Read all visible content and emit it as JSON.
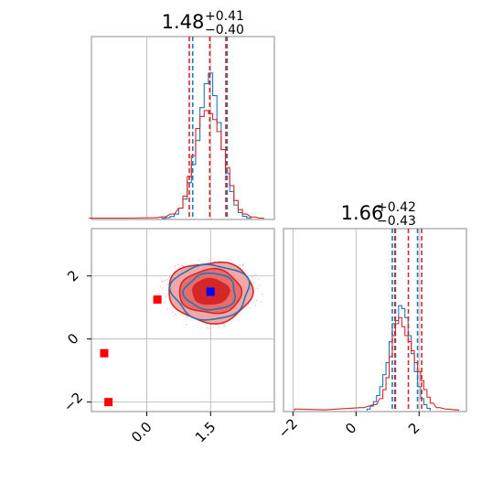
{
  "chart_data": {
    "type": "corner",
    "colors": {
      "series_a": "#1f77b4",
      "series_b": "#d62728",
      "truth": "#0000ff",
      "points": "#ff0000"
    },
    "panels": [
      {
        "id": "hist-x",
        "type": "histogram",
        "title": {
          "value": "1.48",
          "plus": "+0.41",
          "minus": "−0.40"
        },
        "xlim": [
          -1.3,
          3.0
        ],
        "grid": true,
        "series": [
          {
            "color": "#1f77b4",
            "bins": [
              [
                0.4,
                0.002
              ],
              [
                0.5,
                0.006
              ],
              [
                0.6,
                0.014
              ],
              [
                0.7,
                0.03
              ],
              [
                0.8,
                0.07
              ],
              [
                0.9,
                0.13
              ],
              [
                1.0,
                0.24
              ],
              [
                1.1,
                0.36
              ],
              [
                1.2,
                0.52
              ],
              [
                1.3,
                0.74
              ],
              [
                1.4,
                0.9
              ],
              [
                1.5,
                0.97
              ],
              [
                1.6,
                0.82
              ],
              [
                1.7,
                0.64
              ],
              [
                1.8,
                0.46
              ],
              [
                1.9,
                0.3
              ],
              [
                2.0,
                0.18
              ],
              [
                2.1,
                0.09
              ],
              [
                2.2,
                0.04
              ],
              [
                2.3,
                0.015
              ],
              [
                2.4,
                0.004
              ]
            ],
            "quantiles": [
              1.08,
              1.48,
              1.89
            ]
          },
          {
            "color": "#d62728",
            "bins": [
              [
                -1.3,
                0.003
              ],
              [
                -0.5,
                0.003
              ],
              [
                0.2,
                0.006
              ],
              [
                0.4,
                0.012
              ],
              [
                0.6,
                0.03
              ],
              [
                0.8,
                0.07
              ],
              [
                0.9,
                0.15
              ],
              [
                1.0,
                0.28
              ],
              [
                1.1,
                0.42
              ],
              [
                1.2,
                0.6
              ],
              [
                1.3,
                0.68
              ],
              [
                1.4,
                0.72
              ],
              [
                1.5,
                0.7
              ],
              [
                1.6,
                0.66
              ],
              [
                1.7,
                0.58
              ],
              [
                1.8,
                0.46
              ],
              [
                1.9,
                0.34
              ],
              [
                2.0,
                0.22
              ],
              [
                2.1,
                0.12
              ],
              [
                2.2,
                0.06
              ],
              [
                2.3,
                0.03
              ],
              [
                2.5,
                0.01
              ],
              [
                2.7,
                0.003
              ]
            ],
            "quantiles": [
              1.0,
              1.48,
              1.86
            ]
          }
        ]
      },
      {
        "id": "scatter-xy",
        "type": "contour",
        "xlim": [
          -1.3,
          3.0
        ],
        "ylim": [
          -2.3,
          3.5
        ],
        "x_ticks": [
          "0.0",
          "1.5"
        ],
        "x_tick_values": [
          0.0,
          1.5
        ],
        "y_ticks": [
          "−2",
          "0",
          "2"
        ],
        "y_tick_values": [
          -2,
          0,
          2
        ],
        "grid": true,
        "center": [
          1.5,
          1.5
        ],
        "truth_point": [
          1.5,
          1.5
        ],
        "extra_points": [
          [
            0.25,
            1.25
          ],
          [
            -1.0,
            -0.45
          ],
          [
            -0.9,
            -2.0
          ]
        ]
      },
      {
        "id": "hist-y",
        "type": "histogram",
        "title": {
          "value": "1.66",
          "plus": "+0.42",
          "minus": "−0.43"
        },
        "xlim": [
          -2.3,
          3.5
        ],
        "x_ticks": [
          "−2",
          "0",
          "2"
        ],
        "x_tick_values": [
          -2,
          0,
          2
        ],
        "grid": true,
        "series": [
          {
            "color": "#1f77b4",
            "bins": [
              [
                0.4,
                0.01
              ],
              [
                0.5,
                0.03
              ],
              [
                0.6,
                0.06
              ],
              [
                0.7,
                0.1
              ],
              [
                0.8,
                0.16
              ],
              [
                0.9,
                0.24
              ],
              [
                1.0,
                0.32
              ],
              [
                1.1,
                0.46
              ],
              [
                1.2,
                0.58
              ],
              [
                1.3,
                0.6
              ],
              [
                1.4,
                0.7
              ],
              [
                1.5,
                0.68
              ],
              [
                1.6,
                0.62
              ],
              [
                1.7,
                0.5
              ],
              [
                1.8,
                0.38
              ],
              [
                1.9,
                0.26
              ],
              [
                2.0,
                0.16
              ],
              [
                2.1,
                0.08
              ],
              [
                2.2,
                0.04
              ],
              [
                2.3,
                0.015
              ]
            ],
            "quantiles": [
              1.15,
              1.25,
              1.95
            ]
          },
          {
            "color": "#d62728",
            "bins": [
              [
                -1.9,
                0.01
              ],
              [
                -1.0,
                0.006
              ],
              [
                0.2,
                0.02
              ],
              [
                0.6,
                0.04
              ],
              [
                0.8,
                0.08
              ],
              [
                0.9,
                0.14
              ],
              [
                1.0,
                0.22
              ],
              [
                1.1,
                0.36
              ],
              [
                1.2,
                0.5
              ],
              [
                1.3,
                0.58
              ],
              [
                1.4,
                0.62
              ],
              [
                1.5,
                0.56
              ],
              [
                1.6,
                0.5
              ],
              [
                1.7,
                0.46
              ],
              [
                1.8,
                0.4
              ],
              [
                1.9,
                0.32
              ],
              [
                2.0,
                0.26
              ],
              [
                2.1,
                0.2
              ],
              [
                2.2,
                0.14
              ],
              [
                2.3,
                0.09
              ],
              [
                2.4,
                0.05
              ],
              [
                2.6,
                0.02
              ],
              [
                2.9,
                0.01
              ],
              [
                3.2,
                0.005
              ]
            ],
            "quantiles": [
              1.23,
              1.66,
              2.08
            ]
          }
        ]
      }
    ]
  }
}
